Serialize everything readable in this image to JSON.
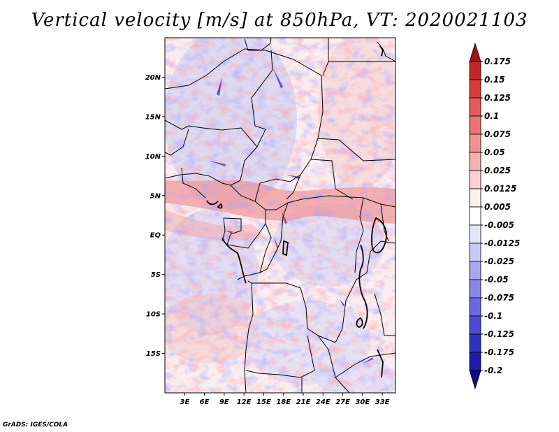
{
  "title": "Vertical velocity [m/s] at 850hPa, VT: 2020021103",
  "footer": "GrADS: IGES/COLA",
  "map": {
    "lat_labels": [
      "20N",
      "15N",
      "10N",
      "5N",
      "EQ",
      "5S",
      "10S",
      "15S"
    ],
    "lon_labels": [
      "3E",
      "6E",
      "9E",
      "12E",
      "15E",
      "18E",
      "21E",
      "24E",
      "27E",
      "30E",
      "33E"
    ],
    "lat_values": [
      20,
      15,
      10,
      5,
      0,
      -5,
      -10,
      -15
    ],
    "lon_values": [
      3,
      6,
      9,
      12,
      15,
      18,
      21,
      24,
      27,
      30,
      33
    ],
    "lon_range": [
      0,
      35
    ],
    "lat_range": [
      -20,
      25
    ]
  },
  "colorbar": {
    "labels": [
      "0.175",
      "0.15",
      "0.125",
      "0.1",
      "0.075",
      "0.05",
      "0.025",
      "0.0125",
      "0.005",
      "-0.005",
      "-0.0125",
      "-0.025",
      "-0.05",
      "-0.075",
      "-0.1",
      "-0.125",
      "-0.175",
      "-0.2"
    ],
    "colors": [
      "#a01414",
      "#c22828",
      "#d63c3c",
      "#e25a5a",
      "#ea7474",
      "#f09292",
      "#f5b0b0",
      "#fad2d2",
      "#fdeeee",
      "#ffffff",
      "#e4e4fb",
      "#c8c8f6",
      "#a8a8f0",
      "#8888e8",
      "#6a6ae0",
      "#4c4cd4",
      "#3232c0",
      "#1c1ca6",
      "#0c0c8c"
    ]
  }
}
